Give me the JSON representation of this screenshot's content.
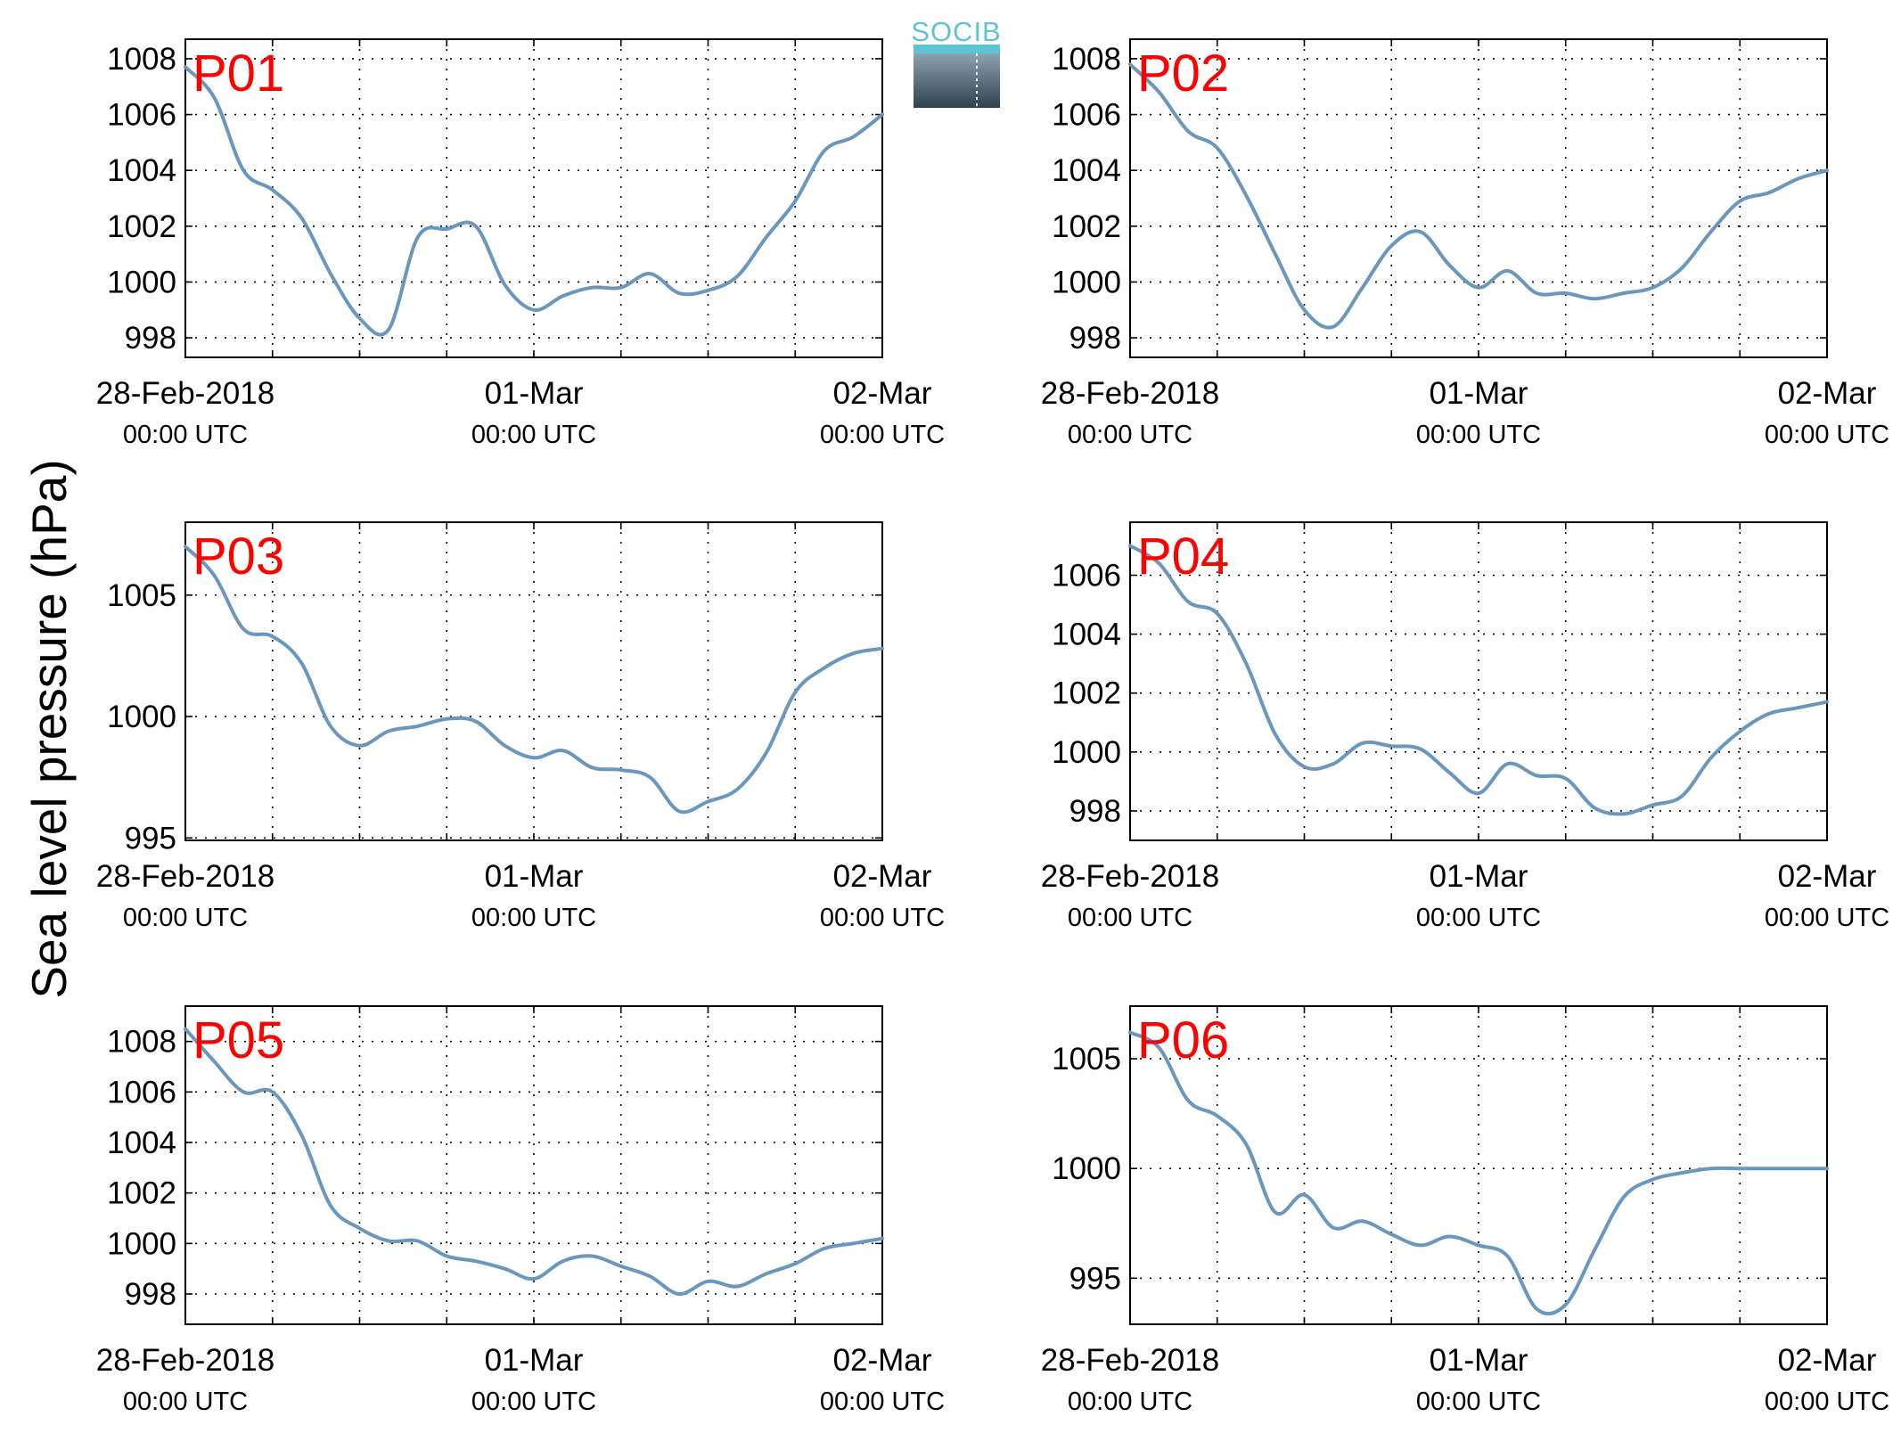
{
  "figure": {
    "ylabel": "Sea level pressure (hPa)",
    "logo_text": "SOCIB"
  },
  "colors": {
    "line": "#6a97bd",
    "panel_label": "#ff0000",
    "logo_light": "#5fc3d6",
    "logo_dark": "#2e4350"
  },
  "chart_data": [
    {
      "type": "line",
      "label": "P01",
      "x_start": "28-Feb-2018 00:00 UTC",
      "x_end": "02-Mar-2018 00:00 UTC",
      "xticks": [
        {
          "main": "28-Feb-2018",
          "sub": "00:00 UTC"
        },
        {
          "main": "01-Mar",
          "sub": "00:00 UTC"
        },
        {
          "main": "02-Mar",
          "sub": "00:00 UTC"
        }
      ],
      "ylim": [
        997.3,
        1008.7
      ],
      "yticks": [
        998,
        1000,
        1002,
        1004,
        1006,
        1008
      ],
      "grid": true,
      "hours": [
        0,
        2,
        4,
        6,
        8,
        10,
        12,
        14,
        16,
        18,
        20,
        22,
        24,
        26,
        28,
        30,
        32,
        34,
        36,
        38,
        40,
        42,
        44,
        46,
        48
      ],
      "values": [
        1007.7,
        1006.6,
        1004.0,
        1003.3,
        1002.3,
        1000.3,
        998.7,
        998.3,
        1001.6,
        1001.9,
        1002.0,
        999.9,
        999.0,
        999.5,
        999.8,
        999.8,
        1000.3,
        999.6,
        999.7,
        1000.2,
        1001.6,
        1002.9,
        1004.7,
        1005.2,
        1006.0
      ]
    },
    {
      "type": "line",
      "label": "P02",
      "x_start": "28-Feb-2018 00:00 UTC",
      "x_end": "02-Mar-2018 00:00 UTC",
      "xticks": [
        {
          "main": "28-Feb-2018",
          "sub": "00:00 UTC"
        },
        {
          "main": "01-Mar",
          "sub": "00:00 UTC"
        },
        {
          "main": "02-Mar",
          "sub": "00:00 UTC"
        }
      ],
      "ylim": [
        997.3,
        1008.7
      ],
      "yticks": [
        998,
        1000,
        1002,
        1004,
        1006,
        1008
      ],
      "grid": true,
      "hours": [
        0,
        2,
        4,
        6,
        8,
        10,
        12,
        14,
        16,
        18,
        20,
        22,
        24,
        26,
        28,
        30,
        32,
        34,
        36,
        38,
        40,
        42,
        44,
        46,
        48
      ],
      "values": [
        1007.8,
        1006.8,
        1005.4,
        1004.8,
        1003.1,
        1001.0,
        999.0,
        998.4,
        999.8,
        1001.3,
        1001.8,
        1000.6,
        999.8,
        1000.4,
        999.6,
        999.6,
        999.4,
        999.6,
        999.8,
        1000.5,
        1001.8,
        1002.9,
        1003.2,
        1003.7,
        1004.0
      ]
    },
    {
      "type": "line",
      "label": "P03",
      "x_start": "28-Feb-2018 00:00 UTC",
      "x_end": "02-Mar-2018 00:00 UTC",
      "xticks": [
        {
          "main": "28-Feb-2018",
          "sub": "00:00 UTC"
        },
        {
          "main": "01-Mar",
          "sub": "00:00 UTC"
        },
        {
          "main": "02-Mar",
          "sub": "00:00 UTC"
        }
      ],
      "ylim": [
        994.9,
        1008.0
      ],
      "yticks": [
        995,
        1000,
        1005
      ],
      "grid": true,
      "hours": [
        0,
        2,
        4,
        6,
        8,
        10,
        12,
        14,
        16,
        18,
        20,
        22,
        24,
        26,
        28,
        30,
        32,
        34,
        36,
        38,
        40,
        42,
        44,
        46,
        48
      ],
      "values": [
        1007.0,
        1005.8,
        1003.6,
        1003.3,
        1002.2,
        999.6,
        998.8,
        999.4,
        999.6,
        999.9,
        999.8,
        998.8,
        998.3,
        998.6,
        997.9,
        997.8,
        997.5,
        996.1,
        996.5,
        997.0,
        998.5,
        1001.0,
        1002.0,
        1002.6,
        1002.8
      ]
    },
    {
      "type": "line",
      "label": "P04",
      "x_start": "28-Feb-2018 00:00 UTC",
      "x_end": "02-Mar-2018 00:00 UTC",
      "xticks": [
        {
          "main": "28-Feb-2018",
          "sub": "00:00 UTC"
        },
        {
          "main": "01-Mar",
          "sub": "00:00 UTC"
        },
        {
          "main": "02-Mar",
          "sub": "00:00 UTC"
        }
      ],
      "ylim": [
        997.0,
        1007.8
      ],
      "yticks": [
        998,
        1000,
        1002,
        1004,
        1006
      ],
      "grid": true,
      "hours": [
        0,
        2,
        4,
        6,
        8,
        10,
        12,
        14,
        16,
        18,
        20,
        22,
        24,
        26,
        28,
        30,
        32,
        34,
        36,
        38,
        40,
        42,
        44,
        46,
        48
      ],
      "values": [
        1007.0,
        1006.4,
        1005.1,
        1004.7,
        1003.0,
        1000.6,
        999.5,
        999.6,
        1000.3,
        1000.2,
        1000.1,
        999.3,
        998.6,
        999.6,
        999.2,
        999.1,
        998.1,
        997.9,
        998.2,
        998.5,
        999.8,
        1000.7,
        1001.3,
        1001.5,
        1001.7
      ]
    },
    {
      "type": "line",
      "label": "P05",
      "x_start": "28-Feb-2018 00:00 UTC",
      "x_end": "02-Mar-2018 00:00 UTC",
      "xticks": [
        {
          "main": "28-Feb-2018",
          "sub": "00:00 UTC"
        },
        {
          "main": "01-Mar",
          "sub": "00:00 UTC"
        },
        {
          "main": "02-Mar",
          "sub": "00:00 UTC"
        }
      ],
      "ylim": [
        996.8,
        1009.4
      ],
      "yticks": [
        998,
        1000,
        1002,
        1004,
        1006,
        1008
      ],
      "grid": true,
      "hours": [
        0,
        2,
        4,
        6,
        8,
        10,
        12,
        14,
        16,
        18,
        20,
        22,
        24,
        26,
        28,
        30,
        32,
        34,
        36,
        38,
        40,
        42,
        44,
        46,
        48
      ],
      "values": [
        1008.5,
        1007.2,
        1006.0,
        1006.0,
        1004.3,
        1001.5,
        1000.6,
        1000.1,
        1000.1,
        999.5,
        999.3,
        999.0,
        998.6,
        999.3,
        999.5,
        999.1,
        998.7,
        998.0,
        998.5,
        998.3,
        998.8,
        999.2,
        999.8,
        1000.0,
        1000.2
      ]
    },
    {
      "type": "line",
      "label": "P06",
      "x_start": "28-Feb-2018 00:00 UTC",
      "x_end": "02-Mar-2018 00:00 UTC",
      "xticks": [
        {
          "main": "28-Feb-2018",
          "sub": "00:00 UTC"
        },
        {
          "main": "01-Mar",
          "sub": "00:00 UTC"
        },
        {
          "main": "02-Mar",
          "sub": "00:00 UTC"
        }
      ],
      "ylim": [
        992.9,
        1007.4
      ],
      "yticks": [
        995,
        1000,
        1005
      ],
      "grid": true,
      "hours": [
        0,
        2,
        4,
        6,
        8,
        10,
        12,
        14,
        16,
        18,
        20,
        22,
        24,
        26,
        28,
        30,
        32,
        34,
        36,
        38,
        40,
        42,
        44,
        46,
        48
      ],
      "values": [
        1006.2,
        1005.5,
        1003.1,
        1002.4,
        1001.1,
        998.0,
        998.8,
        997.3,
        997.6,
        997.0,
        996.5,
        996.9,
        996.5,
        996.0,
        993.6,
        993.8,
        996.3,
        998.7,
        999.5,
        999.8,
        1000.0,
        1000.0,
        1000.0,
        1000.0,
        1000.0
      ]
    }
  ]
}
